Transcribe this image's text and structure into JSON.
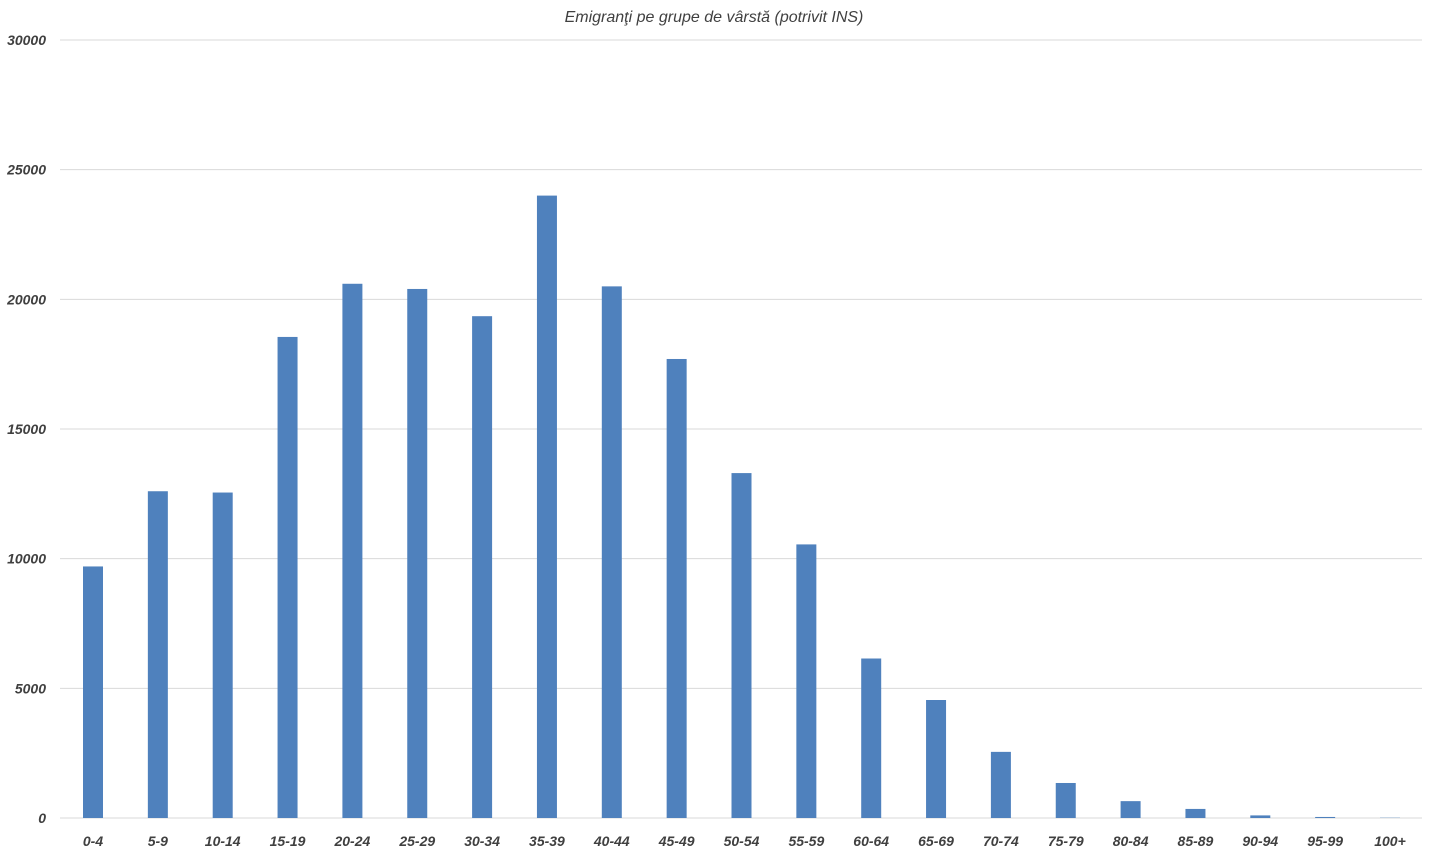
{
  "chart_data": {
    "type": "bar",
    "title": "Emigranţi pe grupe de vârstă (potrivit INS)",
    "xlabel": "",
    "ylabel": "",
    "categories": [
      "0-4",
      "5-9",
      "10-14",
      "15-19",
      "20-24",
      "25-29",
      "30-34",
      "35-39",
      "40-44",
      "45-49",
      "50-54",
      "55-59",
      "60-64",
      "65-69",
      "70-74",
      "75-79",
      "80-84",
      "85-89",
      "90-94",
      "95-99",
      "100+"
    ],
    "values": [
      9700,
      12600,
      12550,
      18550,
      20600,
      20400,
      19350,
      24000,
      20500,
      17700,
      13300,
      10550,
      6150,
      4550,
      2550,
      1350,
      650,
      350,
      100,
      40,
      10
    ],
    "ylim": [
      0,
      30000
    ],
    "yticks": [
      0,
      5000,
      10000,
      15000,
      20000,
      25000,
      30000
    ],
    "grid": true,
    "legend": "none",
    "bar_color": "#4f81bd"
  }
}
